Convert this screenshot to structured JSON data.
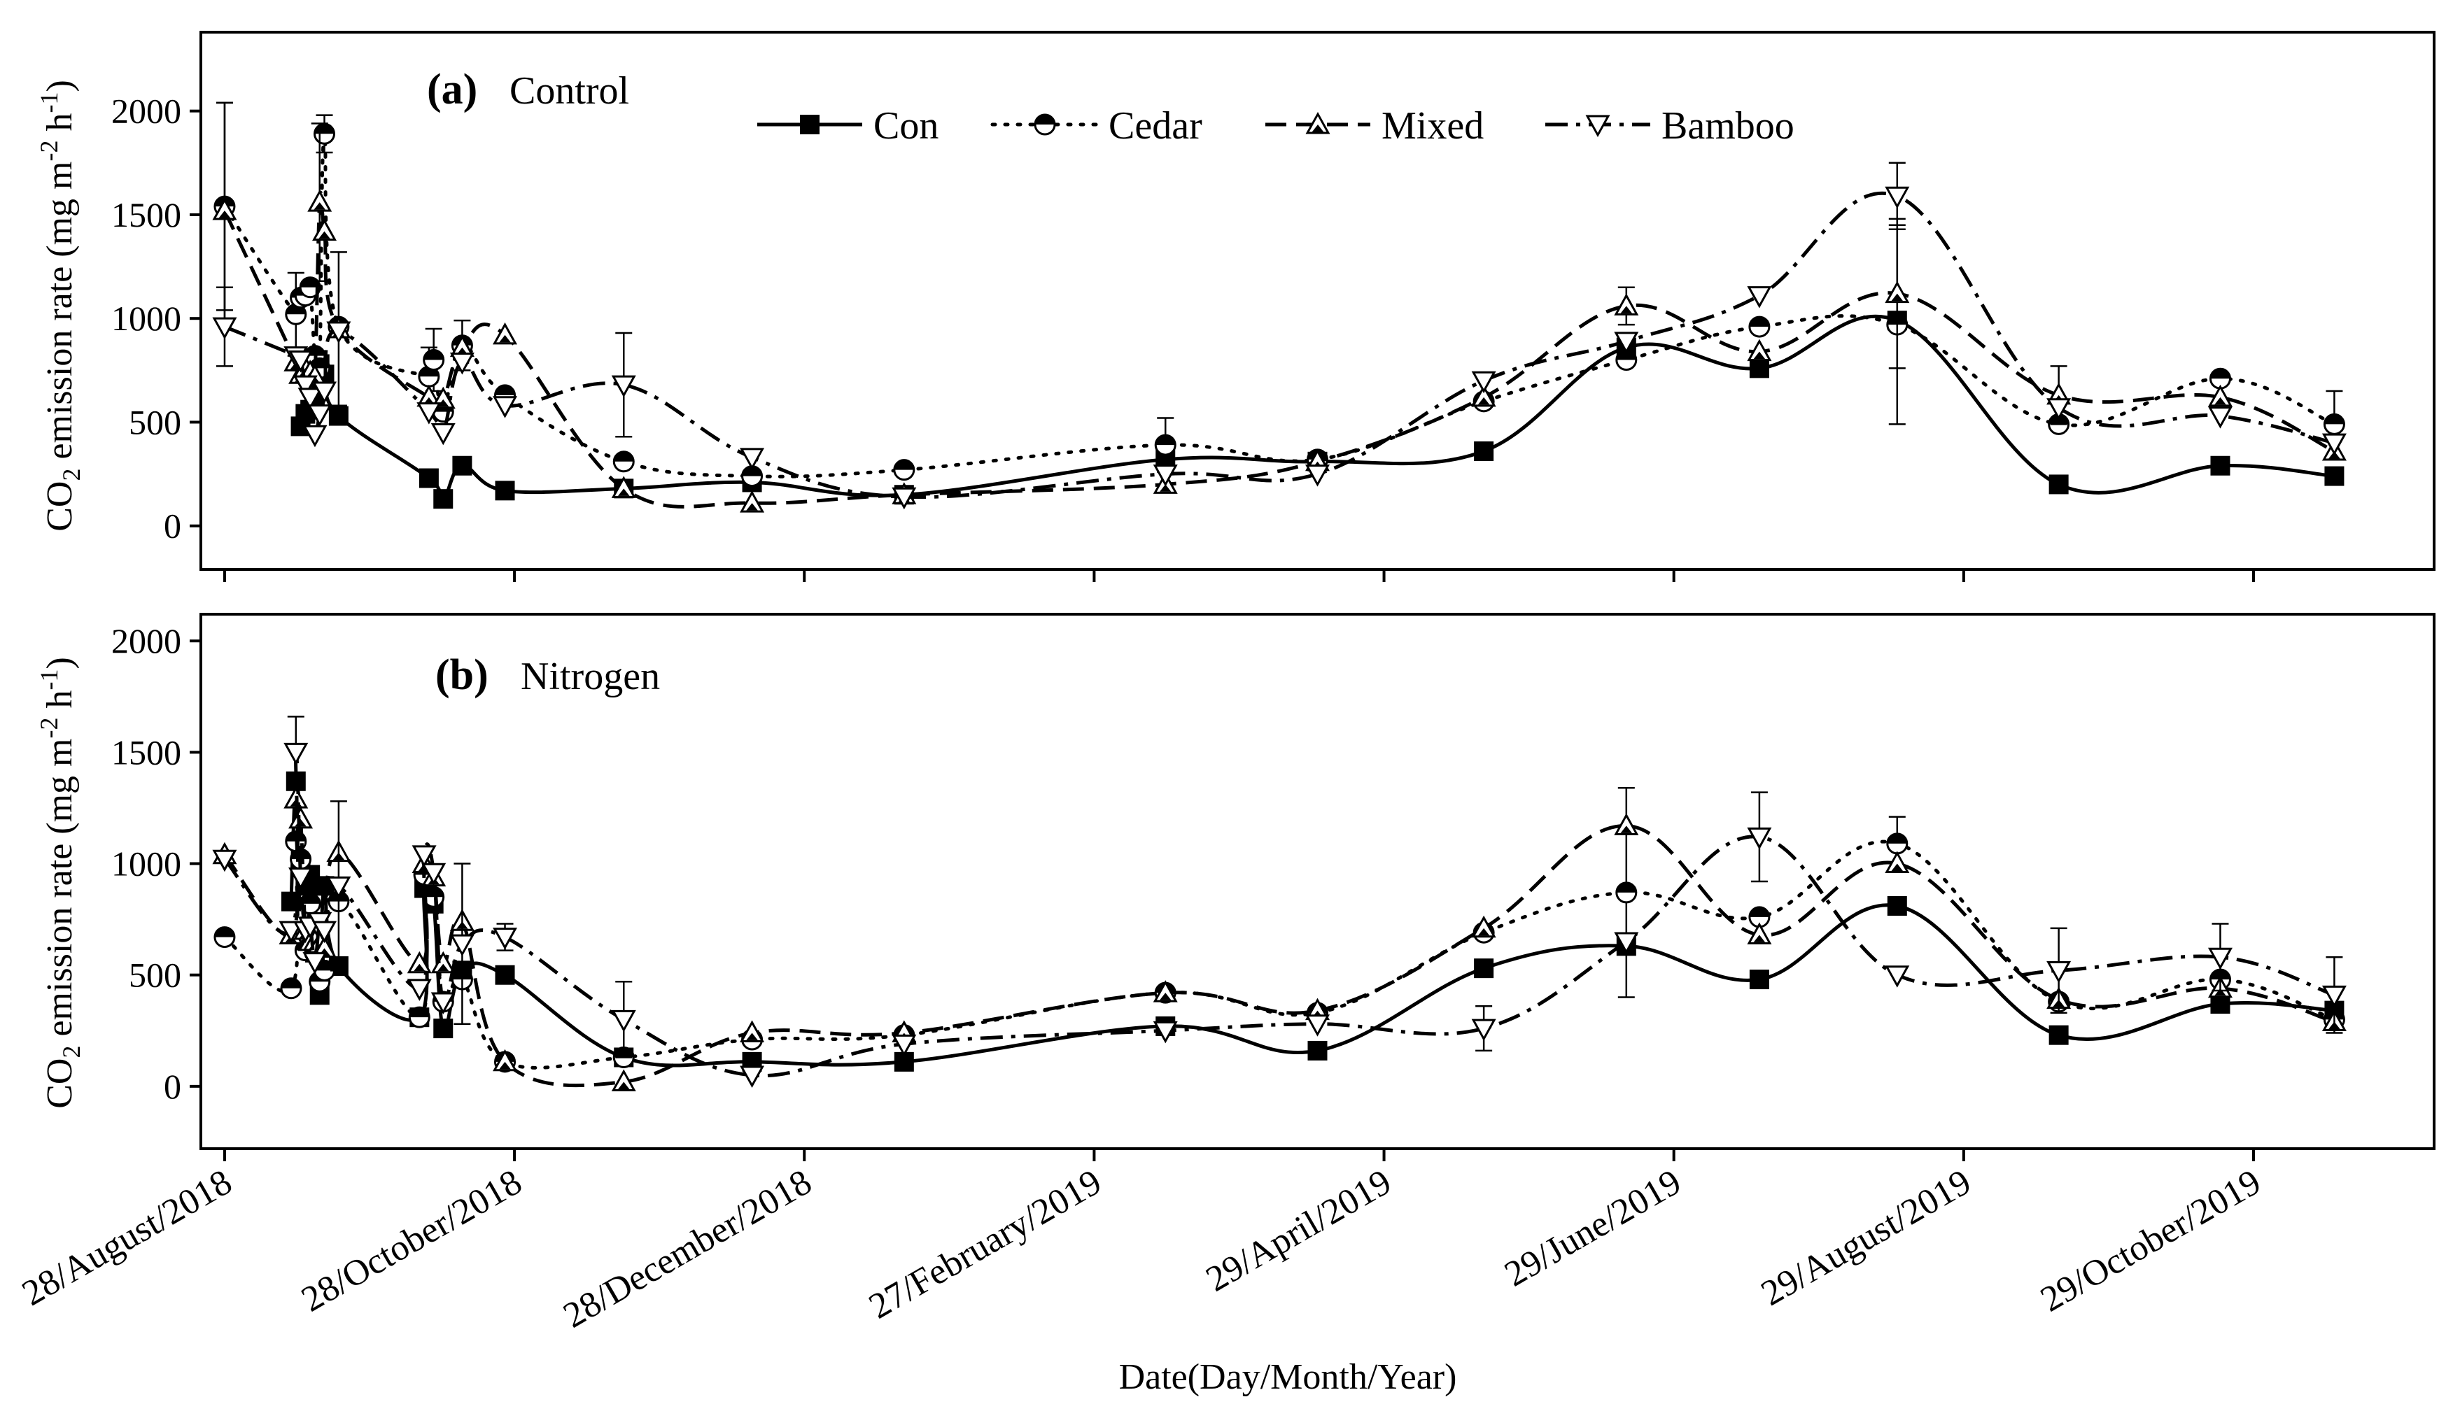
{
  "chart_data": {
    "type": "line",
    "xlabel": "Date(Day/Month/Year)",
    "ylabel_text": "CO",
    "ylabel_sub": "2",
    "ylabel_rest": " emission rate (mg m",
    "ylabel_sup1": "-2",
    "ylabel_h": " h",
    "ylabel_sup2": "-1",
    "ylabel_close": ")",
    "x_unit": "days since 28/August/2018",
    "x_range": [
      -5,
      465
    ],
    "x_ticks": [
      {
        "day": 0,
        "label": "28/August/2018"
      },
      {
        "day": 61,
        "label": "28/October/2018"
      },
      {
        "day": 122,
        "label": "28/December/2018"
      },
      {
        "day": 183,
        "label": "27/February/2019"
      },
      {
        "day": 244,
        "label": "29/April/2019"
      },
      {
        "day": 305,
        "label": "29/June/2019"
      },
      {
        "day": 366,
        "label": "29/August/2019"
      },
      {
        "day": 427,
        "label": "29/October/2019"
      }
    ],
    "y_ticks": [
      0,
      500,
      1000,
      1500,
      2000
    ],
    "legend": [
      {
        "name": "Con",
        "marker": "square-filled",
        "dash": "solid"
      },
      {
        "name": "Cedar",
        "marker": "circle-half",
        "dash": "dotted"
      },
      {
        "name": "Mixed",
        "marker": "triangle-half",
        "dash": "dashed"
      },
      {
        "name": "Bamboo",
        "marker": "triangle-down-open",
        "dash": "dashdot"
      }
    ],
    "panels": [
      {
        "letter": "(a)",
        "name": "Control",
        "ylim": [
          -210,
          2380
        ],
        "series": [
          {
            "name": "Con",
            "x": [
              16,
              17,
              18,
              19,
              20,
              21,
              24,
              43,
              46,
              50,
              59,
              84,
              111,
              143,
              198,
              230,
              265,
              295,
              323,
              352,
              386,
              420,
              444
            ],
            "y": [
              480,
              540,
              560,
              590,
              780,
              730,
              530,
              230,
              130,
              290,
              170,
              180,
              210,
              150,
              320,
              310,
              360,
              860,
              760,
              990,
              200,
              290,
              240
            ],
            "err": [
              0,
              0,
              0,
              0,
              0,
              0,
              0,
              0,
              0,
              0,
              0,
              0,
              0,
              0,
              0,
              0,
              0,
              0,
              0,
              0,
              0,
              0,
              0
            ]
          },
          {
            "name": "Cedar",
            "x": [
              0,
              15,
              16,
              17,
              18,
              19,
              20,
              21,
              24,
              43,
              44,
              46,
              50,
              59,
              84,
              111,
              143,
              198,
              230,
              265,
              295,
              323,
              352,
              386,
              420,
              444
            ],
            "y": [
              1540,
              1020,
              1100,
              1110,
              1150,
              820,
              760,
              1890,
              960,
              720,
              800,
              550,
              870,
              630,
              310,
              240,
              270,
              390,
              320,
              600,
              800,
              960,
              970,
              490,
              710,
              490
            ],
            "err": [
              500,
              200,
              0,
              0,
              0,
              0,
              0,
              90,
              0,
              140,
              150,
              0,
              120,
              0,
              0,
              0,
              0,
              130,
              0,
              0,
              0,
              0,
              480,
              0,
              0,
              160
            ]
          },
          {
            "name": "Mixed",
            "x": [
              0,
              15,
              16,
              17,
              18,
              19,
              20,
              21,
              24,
              43,
              46,
              50,
              59,
              84,
              111,
              143,
              198,
              230,
              265,
              295,
              323,
              352,
              386,
              420,
              444
            ],
            "y": [
              1520,
              790,
              730,
              760,
              740,
              720,
              1560,
              1420,
              950,
              620,
              610,
              860,
              920,
              180,
              110,
              150,
              200,
              310,
              620,
              1060,
              840,
              1120,
              630,
              620,
              360
            ],
            "err": [
              520,
              0,
              0,
              0,
              0,
              0,
              380,
              0,
              370,
              0,
              0,
              0,
              0,
              0,
              0,
              0,
              0,
              0,
              0,
              90,
              0,
              360,
              140,
              0,
              0
            ]
          },
          {
            "name": "Bamboo",
            "x": [
              0,
              15,
              16,
              17,
              18,
              19,
              20,
              21,
              24,
              43,
              46,
              50,
              59,
              84,
              111,
              143,
              198,
              230,
              265,
              295,
              323,
              352,
              386,
              420,
              444
            ],
            "y": [
              960,
              820,
              800,
              680,
              620,
              440,
              540,
              650,
              940,
              550,
              450,
              790,
              580,
              680,
              330,
              140,
              250,
              250,
              700,
              890,
              1110,
              1590,
              570,
              530,
              400
            ],
            "err": [
              190,
              0,
              0,
              0,
              0,
              0,
              0,
              0,
              0,
              0,
              0,
              0,
              0,
              250,
              0,
              0,
              0,
              0,
              0,
              0,
              0,
              160,
              0,
              0,
              0
            ]
          }
        ]
      },
      {
        "letter": "(b)",
        "name": "Nitrogen",
        "ylim": [
          -280,
          2120
        ],
        "series": [
          {
            "name": "Con",
            "x": [
              14,
              15,
              16,
              17,
              18,
              19,
              20,
              21,
              24,
              41,
              42,
              44,
              46,
              50,
              59,
              84,
              111,
              143,
              198,
              230,
              265,
              295,
              323,
              352,
              386,
              420,
              444
            ],
            "y": [
              830,
              1370,
              990,
              900,
              950,
              600,
              410,
              900,
              540,
              310,
              890,
              820,
              260,
              520,
              500,
              130,
              110,
              110,
              270,
              160,
              530,
              630,
              480,
              810,
              230,
              370,
              340
            ],
            "err": [
              0,
              0,
              0,
              0,
              0,
              0,
              0,
              0,
              0,
              0,
              0,
              0,
              0,
              0,
              0,
              0,
              0,
              0,
              0,
              0,
              0,
              0,
              0,
              0,
              0,
              0,
              0
            ]
          },
          {
            "name": "Cedar",
            "x": [
              0,
              14,
              15,
              16,
              17,
              18,
              19,
              20,
              21,
              24,
              41,
              42,
              44,
              46,
              50,
              59,
              84,
              111,
              143,
              198,
              230,
              265,
              295,
              323,
              352,
              386,
              420,
              444
            ],
            "y": [
              670,
              440,
              1100,
              1020,
              610,
              820,
              600,
              470,
              520,
              830,
              310,
              950,
              850,
              380,
              480,
              110,
              130,
              210,
              230,
              420,
              330,
              690,
              870,
              760,
              1090,
              380,
              480,
              300
            ],
            "err": [
              0,
              0,
              0,
              0,
              0,
              0,
              0,
              0,
              0,
              0,
              0,
              0,
              0,
              0,
              0,
              0,
              0,
              0,
              0,
              0,
              0,
              0,
              470,
              0,
              120,
              0,
              0,
              0
            ]
          },
          {
            "name": "Mixed",
            "x": [
              0,
              14,
              15,
              16,
              17,
              18,
              19,
              20,
              21,
              24,
              41,
              42,
              44,
              46,
              50,
              59,
              84,
              111,
              143,
              198,
              230,
              265,
              295,
              323,
              352,
              386,
              420,
              444
            ],
            "y": [
              1040,
              680,
              1290,
              1200,
              700,
              650,
              650,
              640,
              620,
              1050,
              550,
              1000,
              940,
              550,
              740,
              110,
              20,
              240,
              240,
              420,
              340,
              710,
              1170,
              680,
              1000,
              390,
              440,
              290
            ],
            "err": [
              0,
              0,
              0,
              0,
              0,
              0,
              0,
              0,
              0,
              0,
              0,
              0,
              0,
              0,
              0,
              0,
              0,
              0,
              0,
              0,
              0,
              0,
              0,
              0,
              0,
              0,
              0,
              0
            ]
          },
          {
            "name": "Bamboo",
            "x": [
              0,
              14,
              15,
              16,
              17,
              18,
              19,
              20,
              21,
              24,
              41,
              42,
              44,
              46,
              50,
              59,
              84,
              111,
              143,
              198,
              230,
              265,
              295,
              323,
              352,
              386,
              420,
              444
            ],
            "y": [
              1020,
              700,
              1500,
              940,
              700,
              720,
              560,
              740,
              700,
              900,
              440,
              1040,
              960,
              380,
              640,
              670,
              300,
              50,
              190,
              250,
              280,
              260,
              650,
              1120,
              500,
              520,
              580,
              410
            ],
            "err": [
              0,
              0,
              160,
              0,
              0,
              0,
              0,
              0,
              0,
              380,
              0,
              0,
              0,
              0,
              360,
              60,
              170,
              0,
              0,
              0,
              0,
              100,
              0,
              200,
              0,
              190,
              150,
              170
            ]
          }
        ]
      }
    ]
  }
}
